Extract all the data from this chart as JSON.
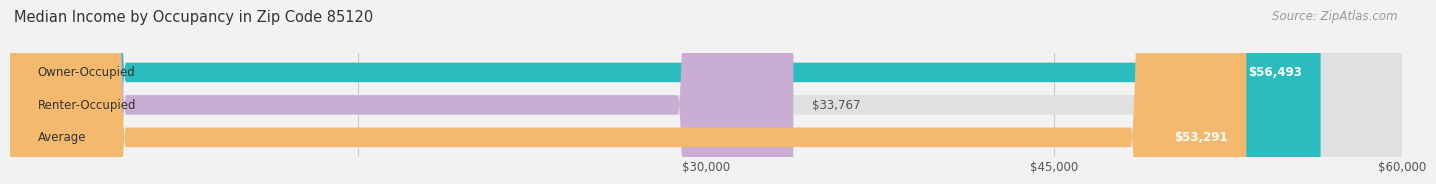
{
  "title": "Median Income by Occupancy in Zip Code 85120",
  "source": "Source: ZipAtlas.com",
  "categories": [
    "Owner-Occupied",
    "Renter-Occupied",
    "Average"
  ],
  "values": [
    56493,
    33767,
    53291
  ],
  "bar_colors": [
    "#2bbcbf",
    "#c9aed4",
    "#f5b96e"
  ],
  "value_labels": [
    "$56,493",
    "$33,767",
    "$53,291"
  ],
  "xlim": [
    0,
    60000
  ],
  "xtick_positions": [
    15000,
    30000,
    45000,
    60000
  ],
  "xtick_labels": [
    "",
    "$30,000",
    "$45,000",
    "$60,000"
  ],
  "bar_height": 0.6,
  "background_color": "#f2f2f2",
  "bar_bg_color": "#e0e0e0",
  "title_fontsize": 10.5,
  "source_fontsize": 8.5,
  "label_fontsize": 8.5,
  "value_fontsize": 8.5
}
